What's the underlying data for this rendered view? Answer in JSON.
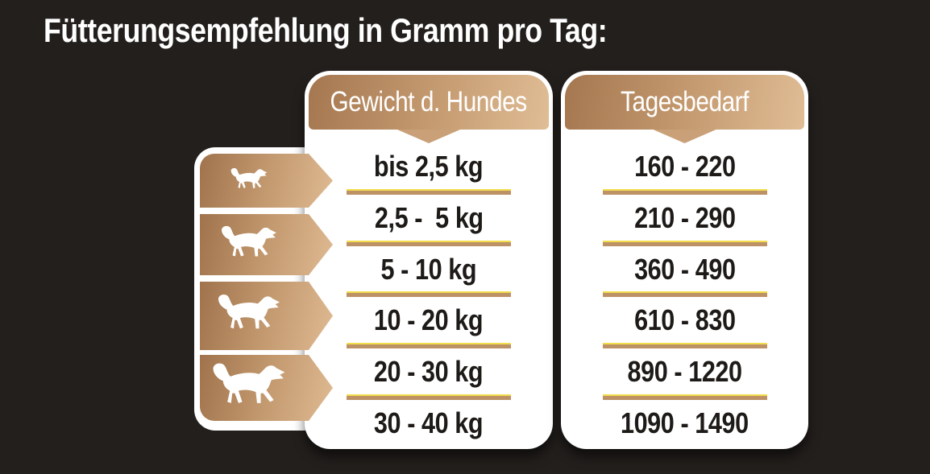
{
  "title": "Fütterungsempfehlung in Gramm pro Tag:",
  "table": {
    "columns": [
      {
        "header": "Gewicht d. Hundes"
      },
      {
        "header": "Tagesbedarf"
      }
    ],
    "rows": [
      {
        "weight": "bis 2,5 kg",
        "daily": "160 - 220"
      },
      {
        "weight": "2,5 -  5 kg",
        "daily": "210 - 290"
      },
      {
        "weight": "5 - 10 kg",
        "daily": "360 - 490"
      },
      {
        "weight": "10 - 20 kg",
        "daily": "610 - 830"
      },
      {
        "weight": "20 - 30 kg",
        "daily": "890 - 1220"
      },
      {
        "weight": "30 - 40 kg",
        "daily": "1090 - 1490"
      }
    ]
  },
  "icons": [
    "dog-small-icon",
    "dog-medium-icon",
    "dog-large-icon",
    "dog-xlarge-icon"
  ],
  "colors": {
    "background": "#231f1d",
    "panel": "#ffffff",
    "bronze_dark": "#a0734c",
    "bronze_light": "#dfba92",
    "separator_tan": "#bd9166",
    "separator_gold": "#f2dd4a",
    "text_dark": "#1d1a18",
    "text_light": "#ffffff"
  }
}
